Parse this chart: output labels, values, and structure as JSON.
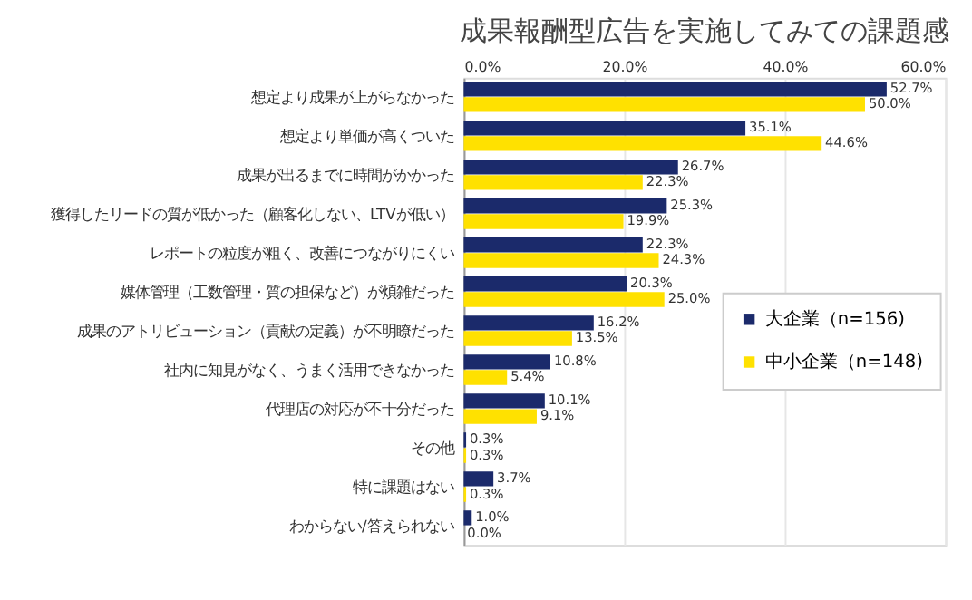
{
  "chart_data": {
    "type": "bar",
    "orientation": "horizontal",
    "title": "成果報酬型広告を実施してみての課題感",
    "categories": [
      "想定より成果が上がらなかった",
      "想定より単価が高くついた",
      "成果が出るまでに時間がかかった",
      "獲得したリードの質が低かった（顧客化しない、LTVが低い）",
      "レポートの粒度が粗く、改善につながりにくい",
      "媒体管理（工数管理・質の担保など）が煩雑だった",
      "成果のアトリビューション（貢献の定義）が不明瞭だった",
      "社内に知見がなく、うまく活用できなかった",
      "代理店の対応が不十分だった",
      "その他",
      "特に課題はない",
      "わからない/答えられない"
    ],
    "series": [
      {
        "name": "大企業（n=156)",
        "color": "#1b2a6b",
        "values": [
          52.7,
          35.1,
          26.7,
          25.3,
          22.3,
          20.3,
          16.2,
          10.8,
          10.1,
          0.3,
          3.7,
          1.0
        ],
        "value_labels": [
          "52.7%",
          "35.1%",
          "26.7%",
          "25.3%",
          "22.3%",
          "20.3%",
          "16.2%",
          "10.8%",
          "10.1%",
          "0.3%",
          "3.7%",
          "1.0%"
        ]
      },
      {
        "name": "中小企業（n=148)",
        "color": "#ffe100",
        "values": [
          50.0,
          44.6,
          22.3,
          19.9,
          24.3,
          25.0,
          13.5,
          5.4,
          9.1,
          0.3,
          0.3,
          0.0
        ],
        "value_labels": [
          "50.0%",
          "44.6%",
          "22.3%",
          "19.9%",
          "24.3%",
          "25.0%",
          "13.5%",
          "5.4%",
          "9.1%",
          "0.3%",
          "0.3%",
          "0.0%"
        ]
      }
    ],
    "xlim": [
      0,
      60
    ],
    "xticks": [
      {
        "value": 0,
        "label": "0.0%"
      },
      {
        "value": 20,
        "label": "20.0%"
      },
      {
        "value": 40,
        "label": "40.0%"
      },
      {
        "value": 60,
        "label": "60.0%"
      }
    ],
    "grid": "x",
    "legend": "right"
  }
}
